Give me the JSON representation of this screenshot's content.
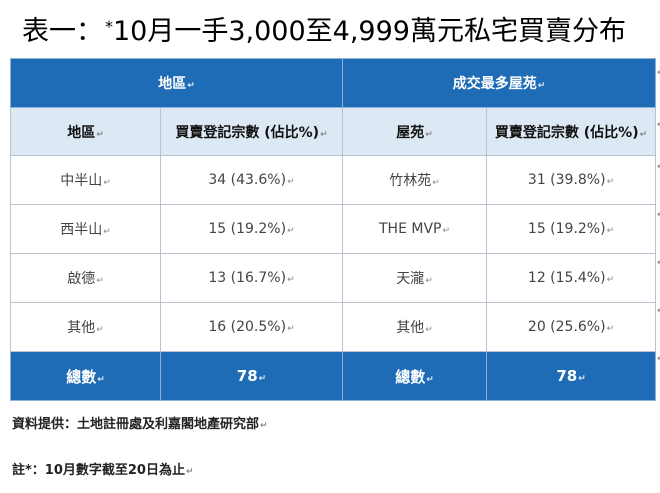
{
  "title": {
    "prefix": "表一：",
    "star": "*",
    "text": "10月一手3,000至4,999萬元私宅買賣分布"
  },
  "para_mark": "↵",
  "table": {
    "group_headers": [
      "地區",
      "成交最多屋苑"
    ],
    "column_headers": [
      "地區",
      "買賣登記宗數 (佔比%)",
      "屋苑",
      "買賣登記宗數 (佔比%)"
    ],
    "rows": [
      [
        "中半山",
        "34 (43.6%)",
        "竹林苑",
        "31 (39.8%)"
      ],
      [
        "西半山",
        "15 (19.2%)",
        "THE MVP",
        "15 (19.2%)"
      ],
      [
        "啟德",
        "13 (16.7%)",
        "天瀧",
        "12 (15.4%)"
      ],
      [
        "其他",
        "16 (20.5%)",
        "其他",
        "20 (25.6%)"
      ]
    ],
    "total": [
      "總數",
      "78",
      "總數",
      "78"
    ]
  },
  "notes": {
    "source": "資料提供：土地註冊處及利嘉閣地產研究部",
    "footnote": "註*：10月數字截至20日為止"
  },
  "colors": {
    "header_blue": "#1f6cb6",
    "subheader_light_blue": "#dce8f4",
    "border": "#b9c4d0"
  }
}
